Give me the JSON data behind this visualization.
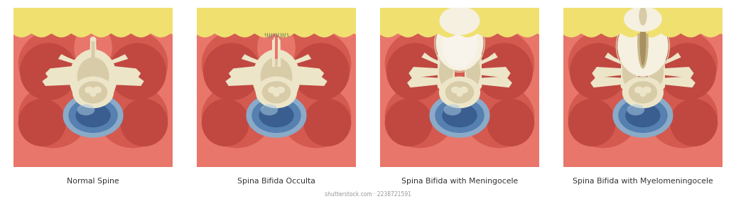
{
  "panels": [
    {
      "title": "Normal Spine"
    },
    {
      "title": "Spina Bifida Occulta"
    },
    {
      "title": "Spina Bifida with Meningocele"
    },
    {
      "title": "Spina Bifida with Myelomeningocele"
    }
  ],
  "bg_color": "#ffffff",
  "muscle_light": "#E8766A",
  "muscle_mid": "#D45A50",
  "muscle_dark": "#C04840",
  "fat_color": "#F0E070",
  "fat_light": "#F5EB90",
  "bone_light": "#EDE5C8",
  "bone_mid": "#D8CBA8",
  "bone_dark": "#C0AA80",
  "blue_rim": "#8AAAC8",
  "blue_mid": "#5580B0",
  "blue_dark": "#3A5E90",
  "blue_light": "#A8C8E0",
  "sac_light": "#F5F0E0",
  "sac_mid": "#EDE5C8",
  "cord_color": "#C8B888",
  "cord_dark": "#A89060",
  "nerve_color": "#D5C8A0",
  "skin_line": "#C86850",
  "shutterstock_text": "shutterstock.com · 2238721591"
}
